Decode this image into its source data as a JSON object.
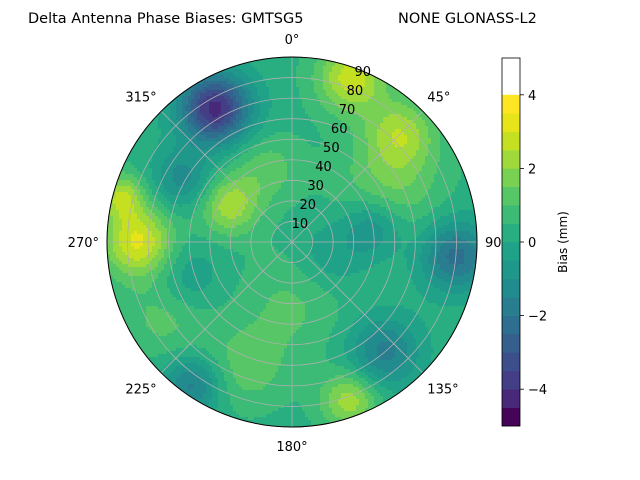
{
  "chart_data": {
    "type": "polar-contour",
    "title": "Delta Antenna Phase Biases: GMTSG5",
    "subtitle": "NONE GLONASS-L2",
    "angle_tick_labels": [
      {
        "deg": 0,
        "label": "0°"
      },
      {
        "deg": 45,
        "label": "45°"
      },
      {
        "deg": 90,
        "label": "90"
      },
      {
        "deg": 135,
        "label": "135°"
      },
      {
        "deg": 180,
        "label": "180°"
      },
      {
        "deg": 225,
        "label": "225°"
      },
      {
        "deg": 270,
        "label": "270°"
      },
      {
        "deg": 315,
        "label": "315°"
      }
    ],
    "radial_ticks": [
      10,
      20,
      30,
      40,
      50,
      60,
      70,
      80,
      90
    ],
    "radial_range": [
      0,
      90
    ],
    "radial_label_angle_deg": 22.5,
    "theta_zero": "north",
    "theta_direction": "clockwise",
    "grid": true,
    "colorbar": {
      "label": "Bias (mm)",
      "colormap": "viridis",
      "levels": [
        -5,
        -4.5,
        -4,
        -3.5,
        -3,
        -2.5,
        -2,
        -1.5,
        -1,
        -0.5,
        0,
        0.5,
        1,
        1.5,
        2,
        2.5,
        3,
        3.5,
        4,
        4.5,
        5
      ],
      "ticks": [
        -4,
        -2,
        0,
        2,
        4
      ],
      "tick_labels": [
        "−4",
        "−2",
        "0",
        "2",
        "4"
      ],
      "colors": [
        "#450457",
        "#482979",
        "#433e85",
        "#3c4f8a",
        "#355f8d",
        "#2e6e8e",
        "#287d8e",
        "#228b8d",
        "#1f978b",
        "#1fa287",
        "#28ae80",
        "#3bbb75",
        "#56c667",
        "#78d152",
        "#9fda3a",
        "#c5e021",
        "#e7e419",
        "#fde725"
      ]
    },
    "field_components": [
      {
        "theta_deg": 20,
        "zenith_deg": 85,
        "spread_deg": 12,
        "amplitude_mm": 2.5
      },
      {
        "theta_deg": 45,
        "zenith_deg": 75,
        "spread_deg": 12,
        "amplitude_mm": 1.8
      },
      {
        "theta_deg": 60,
        "zenith_deg": 55,
        "spread_deg": 18,
        "amplitude_mm": 1.2
      },
      {
        "theta_deg": 270,
        "zenith_deg": 75,
        "spread_deg": 12,
        "amplitude_mm": 2.8
      },
      {
        "theta_deg": 285,
        "zenith_deg": 86,
        "spread_deg": 8,
        "amplitude_mm": 2.0
      },
      {
        "theta_deg": 330,
        "zenith_deg": 75,
        "spread_deg": 12,
        "amplitude_mm": -4.5
      },
      {
        "theta_deg": 300,
        "zenith_deg": 62,
        "spread_deg": 10,
        "amplitude_mm": -1.5
      },
      {
        "theta_deg": 95,
        "zenith_deg": 80,
        "spread_deg": 12,
        "amplitude_mm": -2.5
      },
      {
        "theta_deg": 80,
        "zenith_deg": 40,
        "spread_deg": 10,
        "amplitude_mm": -1.5
      },
      {
        "theta_deg": 140,
        "zenith_deg": 70,
        "spread_deg": 12,
        "amplitude_mm": -2.0
      },
      {
        "theta_deg": 160,
        "zenith_deg": 82,
        "spread_deg": 10,
        "amplitude_mm": 2.0
      },
      {
        "theta_deg": 215,
        "zenith_deg": 85,
        "spread_deg": 10,
        "amplitude_mm": -2.0
      },
      {
        "theta_deg": 200,
        "zenith_deg": 65,
        "spread_deg": 14,
        "amplitude_mm": 1.0
      },
      {
        "theta_deg": 240,
        "zenith_deg": 70,
        "spread_deg": 15,
        "amplitude_mm": 1.0
      },
      {
        "theta_deg": 250,
        "zenith_deg": 55,
        "spread_deg": 12,
        "amplitude_mm": -1.0
      },
      {
        "theta_deg": 340,
        "zenith_deg": 38,
        "spread_deg": 12,
        "amplitude_mm": 1.0
      },
      {
        "theta_deg": 300,
        "zenith_deg": 35,
        "spread_deg": 10,
        "amplitude_mm": 2.0
      },
      {
        "theta_deg": 110,
        "zenith_deg": 20,
        "spread_deg": 12,
        "amplitude_mm": -0.8
      },
      {
        "theta_deg": 180,
        "zenith_deg": 30,
        "spread_deg": 18,
        "amplitude_mm": 0.8
      }
    ],
    "field_baseline_mm": 0.3
  }
}
